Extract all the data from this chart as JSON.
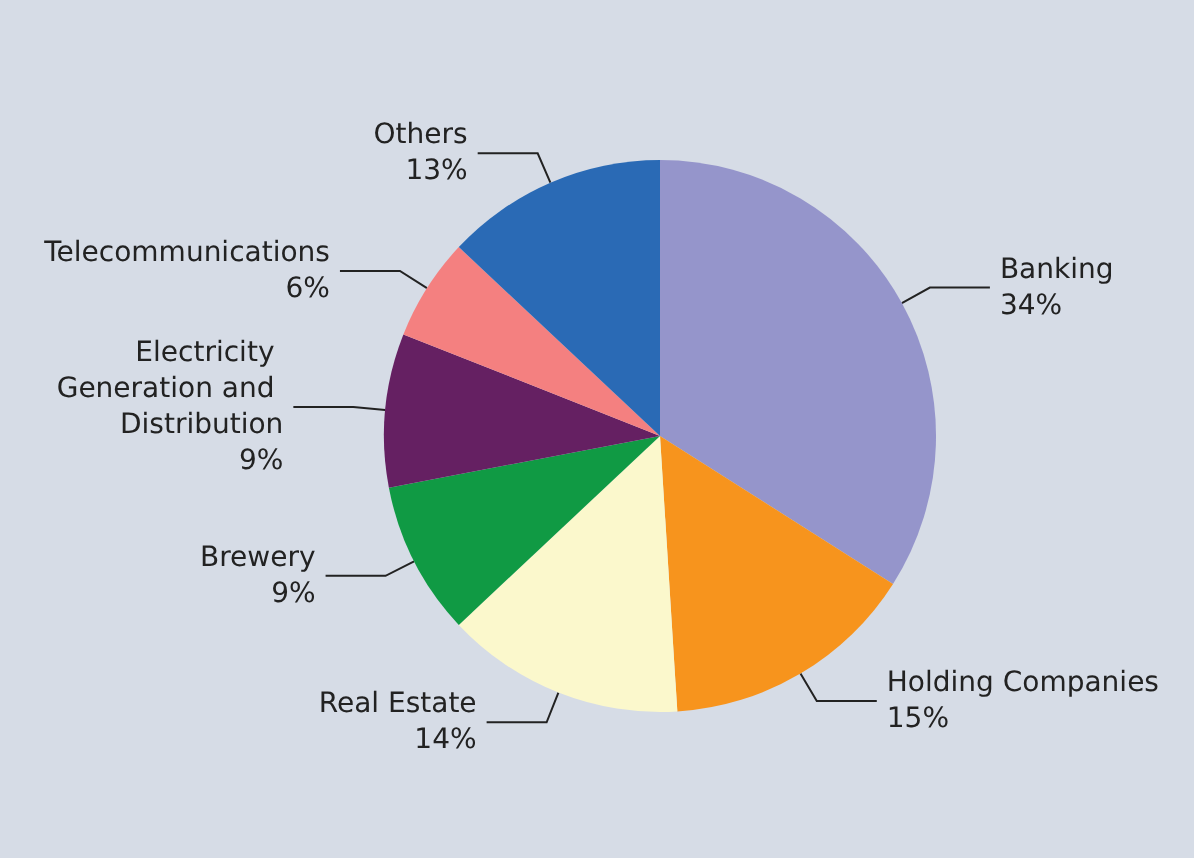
{
  "chart_data": {
    "type": "pie",
    "categories": [
      "Banking",
      "Holding Companies",
      "Real Estate",
      "Brewery",
      "Electricity Generation and Distribution",
      "Telecommunications",
      "Others"
    ],
    "values": [
      34,
      15,
      14,
      9,
      9,
      6,
      13
    ],
    "value_labels": [
      "34%",
      "15%",
      "14%",
      "9%",
      "9%",
      "6%",
      "13%"
    ],
    "colors": [
      "#9595cb",
      "#f7941d",
      "#fbf8cc",
      "#109a44",
      "#652062",
      "#f48080",
      "#2a6ab5"
    ]
  }
}
